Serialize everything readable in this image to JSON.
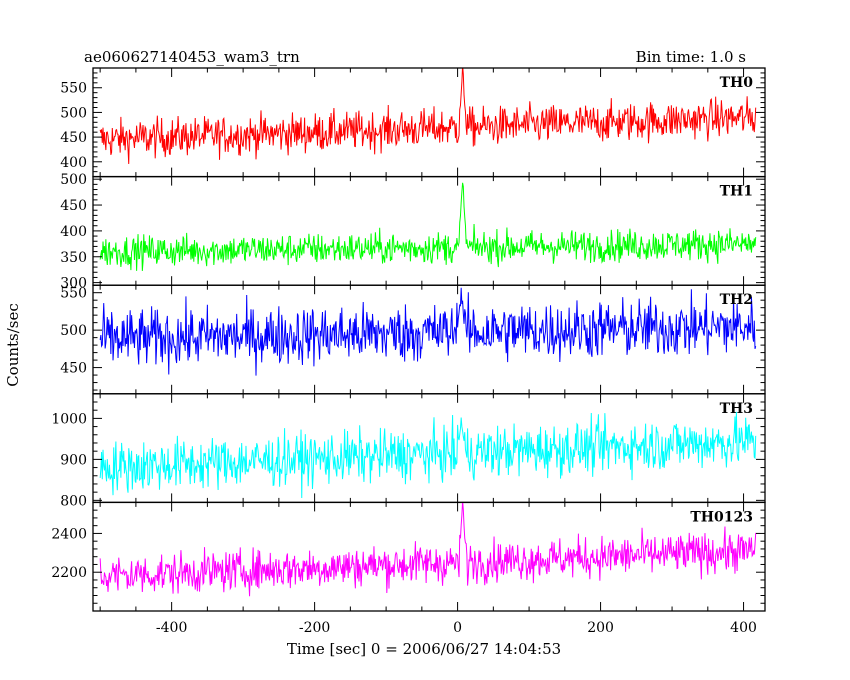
{
  "header": {
    "title": "ae060627140453_wam3_trn",
    "bin_time": "Bin time: 1.0 s"
  },
  "chart_data": {
    "type": "line",
    "title": "ae060627140453_wam3_trn",
    "bin_time_s": 1.0,
    "xlabel": "Time [sec] 0 = 2006/06/27 14:04:53",
    "ylabel": "Counts/sec",
    "xlim": [
      -510,
      430
    ],
    "x_ticks": [
      -400,
      -200,
      0,
      200,
      400
    ],
    "x_range_data": [
      -500,
      417
    ],
    "grid": false,
    "panels": [
      {
        "name": "TH0",
        "color": "#ff0000",
        "ylim": [
          370,
          590
        ],
        "y_ticks": [
          400,
          450,
          500,
          550
        ],
        "base_start": 445,
        "base_end": 490,
        "noise": 28,
        "spike": 590,
        "spike_x": 5
      },
      {
        "name": "TH1",
        "color": "#00ff00",
        "ylim": [
          295,
          505
        ],
        "y_ticks": [
          300,
          350,
          400,
          450,
          500
        ],
        "base_start": 360,
        "base_end": 375,
        "noise": 22,
        "spike": 505,
        "spike_x": 5
      },
      {
        "name": "TH2",
        "color": "#0000ff",
        "ylim": [
          415,
          560
        ],
        "y_ticks": [
          450,
          500,
          550
        ],
        "base_start": 488,
        "base_end": 505,
        "noise": 28,
        "spike": 555,
        "spike_x": 3
      },
      {
        "name": "TH3",
        "color": "#00ffff",
        "ylim": [
          795,
          1060
        ],
        "y_ticks": [
          800,
          900,
          1000
        ],
        "base_start": 880,
        "base_end": 945,
        "noise": 45,
        "spike": 1000,
        "spike_x": 3
      },
      {
        "name": "TH0123",
        "color": "#ff00ff",
        "ylim": [
          2000,
          2560
        ],
        "y_ticks": [
          2200,
          2400
        ],
        "base_start": 2180,
        "base_end": 2310,
        "noise": 75,
        "spike": 2560,
        "spike_x": 5
      }
    ]
  }
}
